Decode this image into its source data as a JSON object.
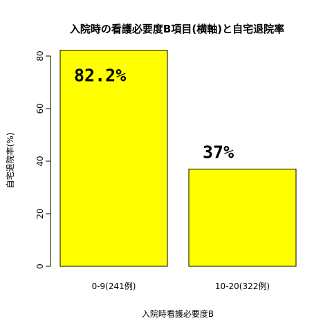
{
  "chart_data": {
    "type": "bar",
    "title": "入院時の看護必要度B項目(横軸)と自宅退院率",
    "xlabel": "入院時看護必要度B",
    "ylabel": "自宅退院率(%)",
    "categories": [
      "0-9(241例)",
      "10-20(322例)"
    ],
    "values": [
      82.2,
      37
    ],
    "data_labels": [
      "82.2%",
      "37%"
    ],
    "yticks": [
      0,
      20,
      40,
      60,
      80
    ],
    "ylim": [
      0,
      82.2
    ],
    "bar_color": "#ffff00",
    "grid": false
  }
}
